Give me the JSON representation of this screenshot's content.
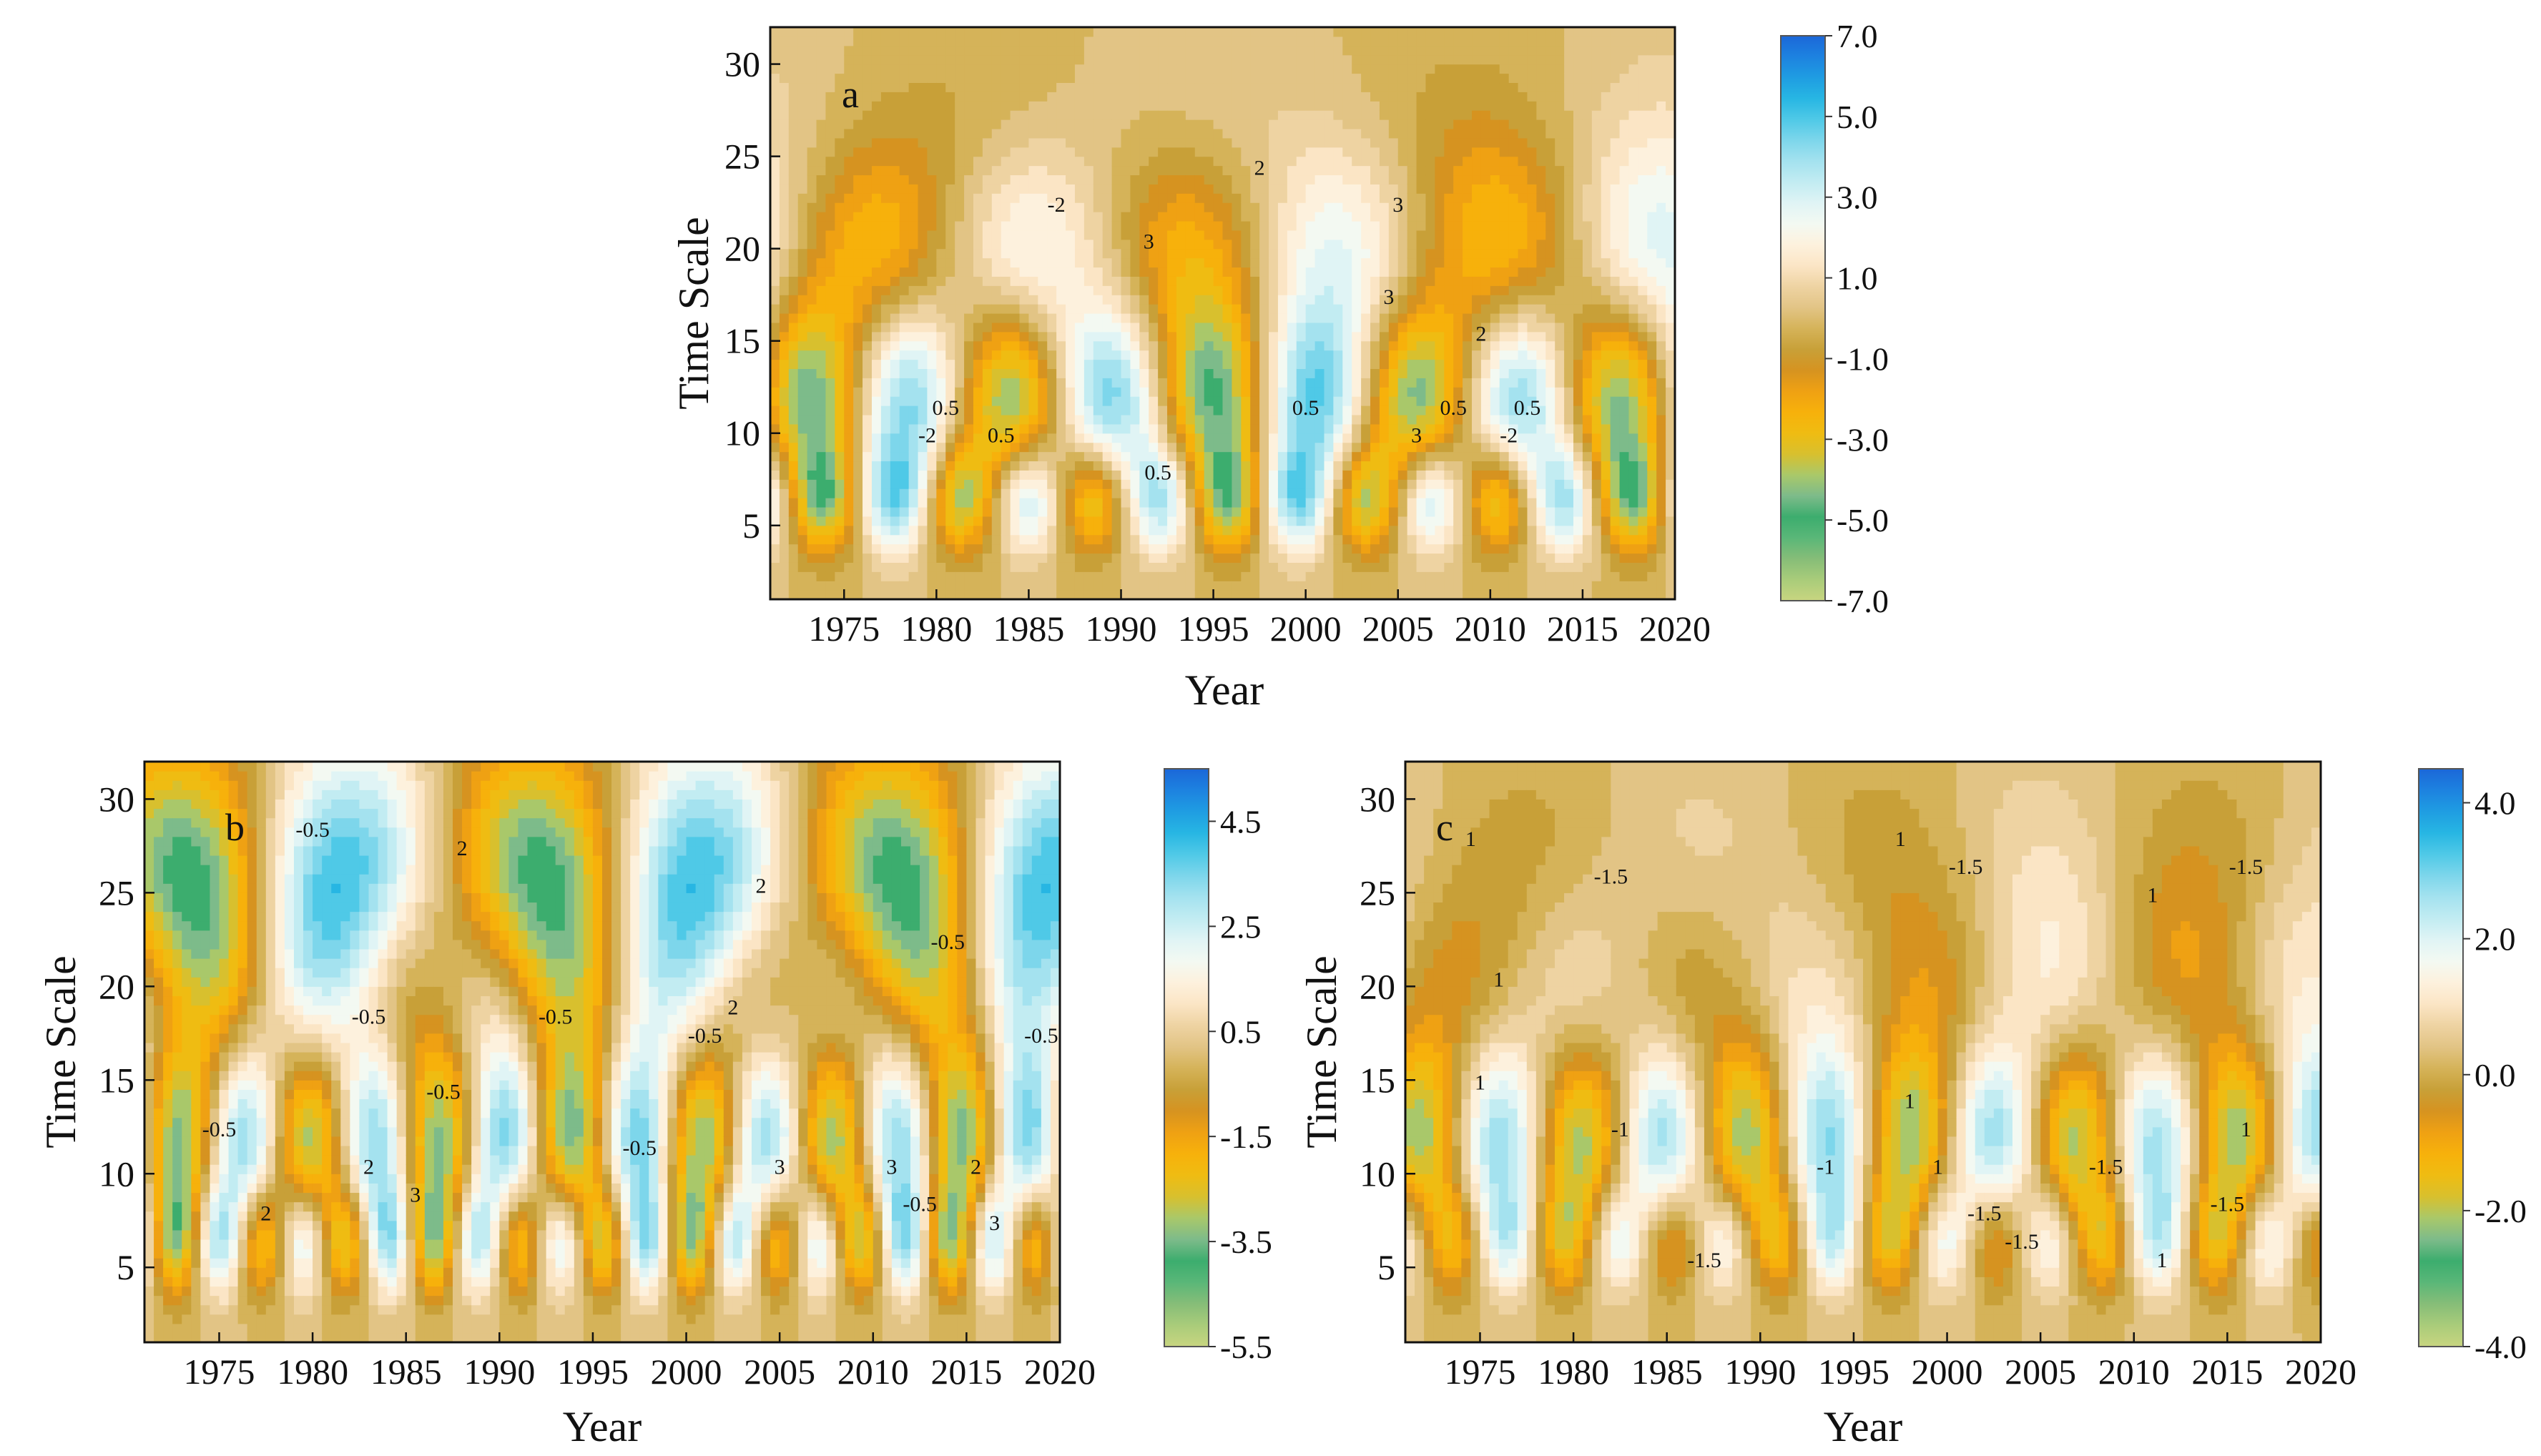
{
  "chart_data": [
    {
      "type": "heatmap",
      "panel_label": "a",
      "title": "",
      "xlabel": "Year",
      "ylabel": "Time Scale",
      "xlim": [
        1971,
        2020
      ],
      "ylim": [
        1,
        32
      ],
      "x_ticks": [
        1975,
        1980,
        1985,
        1990,
        1995,
        2000,
        2005,
        2010,
        2015,
        2020
      ],
      "y_ticks": [
        5,
        10,
        15,
        20,
        25,
        30
      ],
      "colorbar": {
        "min": -7.0,
        "max": 7.0,
        "labels": [
          "7.0",
          "5.0",
          "3.0",
          "1.0",
          "-1.0",
          "-3.0",
          "-5.0",
          "-7.0"
        ],
        "label_values": [
          7,
          5,
          3,
          1,
          -1,
          -3,
          -5,
          -7
        ]
      },
      "contour_labels": [
        {
          "text": "-2",
          "x": 1986.5,
          "y": 22
        },
        {
          "text": "3",
          "x": 1991.5,
          "y": 20
        },
        {
          "text": "2",
          "x": 1997.5,
          "y": 24
        },
        {
          "text": "3",
          "x": 2005,
          "y": 22
        },
        {
          "text": "3",
          "x": 2004.5,
          "y": 17
        },
        {
          "text": "2",
          "x": 2009.5,
          "y": 15
        },
        {
          "text": "0.5",
          "x": 1980.5,
          "y": 11
        },
        {
          "text": "-2",
          "x": 1979.5,
          "y": 9.5
        },
        {
          "text": "0.5",
          "x": 1983.5,
          "y": 9.5
        },
        {
          "text": "0.5",
          "x": 2000,
          "y": 11
        },
        {
          "text": "0.5",
          "x": 2008,
          "y": 11
        },
        {
          "text": "0.5",
          "x": 2012,
          "y": 11
        },
        {
          "text": "-2",
          "x": 2011,
          "y": 9.5
        },
        {
          "text": "3",
          "x": 2006,
          "y": 9.5
        },
        {
          "text": "0.5",
          "x": 1992,
          "y": 7.5
        }
      ],
      "pattern": {
        "a0": 0.3,
        "p0": 25,
        "ph0": 0.3,
        "a1": 1.2,
        "p1": 17,
        "ph1": 1.1,
        "a2": 2.1,
        "p2": 11,
        "ph2": 2.0,
        "a3": 1.8,
        "p3": 7.3,
        "ph3": 0.6
      }
    },
    {
      "type": "heatmap",
      "panel_label": "b",
      "title": "",
      "xlabel": "Year",
      "ylabel": "Time Scale",
      "xlim": [
        1971,
        2020
      ],
      "ylim": [
        1,
        32
      ],
      "x_ticks": [
        1975,
        1980,
        1985,
        1990,
        1995,
        2000,
        2005,
        2010,
        2015,
        2020
      ],
      "y_ticks": [
        5,
        10,
        15,
        20,
        25,
        30
      ],
      "colorbar": {
        "min": -5.5,
        "max": 5.5,
        "labels": [
          "4.5",
          "2.5",
          "0.5",
          "-1.5",
          "-3.5",
          "-5.5"
        ],
        "label_values": [
          4.5,
          2.5,
          0.5,
          -1.5,
          -3.5,
          -5.5
        ]
      },
      "contour_labels": [
        {
          "text": "-0.5",
          "x": 1980,
          "y": 28
        },
        {
          "text": "2",
          "x": 1988,
          "y": 27
        },
        {
          "text": "2",
          "x": 2004,
          "y": 25
        },
        {
          "text": "-0.5",
          "x": 2014,
          "y": 22
        },
        {
          "text": "-0.5",
          "x": 1983,
          "y": 18
        },
        {
          "text": "-0.5",
          "x": 1993,
          "y": 18
        },
        {
          "text": "-0.5",
          "x": 2001,
          "y": 17
        },
        {
          "text": "2",
          "x": 2002.5,
          "y": 18.5
        },
        {
          "text": "-0.5",
          "x": 2019,
          "y": 17
        },
        {
          "text": "-0.5",
          "x": 1975,
          "y": 12
        },
        {
          "text": "-0.5",
          "x": 1987,
          "y": 14
        },
        {
          "text": "2",
          "x": 1983,
          "y": 10
        },
        {
          "text": "3",
          "x": 1985.5,
          "y": 8.5
        },
        {
          "text": "2",
          "x": 2015.5,
          "y": 10
        },
        {
          "text": "3",
          "x": 2005,
          "y": 10
        },
        {
          "text": "3",
          "x": 2011,
          "y": 10
        },
        {
          "text": "-0.5",
          "x": 1997.5,
          "y": 11
        },
        {
          "text": "-0.5",
          "x": 2012.5,
          "y": 8
        },
        {
          "text": "2",
          "x": 1977.5,
          "y": 7.5
        },
        {
          "text": "3",
          "x": 2016.5,
          "y": 7
        }
      ],
      "pattern": {
        "a0": 2.4,
        "p0": 19,
        "ph0": 2.6,
        "a1": 0.8,
        "p1": 9.5,
        "ph1": 0.4,
        "a2": 2.0,
        "p2": 7.0,
        "ph2": 1.5,
        "a3": 1.6,
        "p3": 4.6,
        "ph3": 0.9
      }
    },
    {
      "type": "heatmap",
      "panel_label": "c",
      "title": "",
      "xlabel": "Year",
      "ylabel": "Time Scale",
      "xlim": [
        1971,
        2020
      ],
      "ylim": [
        1,
        32
      ],
      "x_ticks": [
        1975,
        1980,
        1985,
        1990,
        1995,
        2000,
        2005,
        2010,
        2015,
        2020
      ],
      "y_ticks": [
        5,
        10,
        15,
        20,
        25,
        30
      ],
      "colorbar": {
        "min": -4.0,
        "max": 4.5,
        "labels": [
          "4.0",
          "2.0",
          "0.0",
          "-2.0",
          "-4.0"
        ],
        "label_values": [
          4,
          2,
          0,
          -2,
          -4
        ]
      },
      "contour_labels": [
        {
          "text": "1",
          "x": 1974.5,
          "y": 27.5
        },
        {
          "text": "-1.5",
          "x": 1982,
          "y": 25.5
        },
        {
          "text": "1",
          "x": 1997.5,
          "y": 27.5
        },
        {
          "text": "-1.5",
          "x": 2001,
          "y": 26
        },
        {
          "text": "1",
          "x": 2011,
          "y": 24.5
        },
        {
          "text": "-1.5",
          "x": 2016,
          "y": 26
        },
        {
          "text": "1",
          "x": 1976,
          "y": 20
        },
        {
          "text": "1",
          "x": 1975,
          "y": 14.5
        },
        {
          "text": "-1",
          "x": 1982.5,
          "y": 12
        },
        {
          "text": "-1",
          "x": 1993.5,
          "y": 10
        },
        {
          "text": "1",
          "x": 1998,
          "y": 13.5
        },
        {
          "text": "1",
          "x": 1999.5,
          "y": 10
        },
        {
          "text": "-1.5",
          "x": 2002,
          "y": 7.5
        },
        {
          "text": "-1.5",
          "x": 2004,
          "y": 6
        },
        {
          "text": "-1.5",
          "x": 2008.5,
          "y": 10
        },
        {
          "text": "-1.5",
          "x": 2015,
          "y": 8
        },
        {
          "text": "1",
          "x": 2016,
          "y": 12
        },
        {
          "text": "1",
          "x": 2011.5,
          "y": 5
        },
        {
          "text": "-1.5",
          "x": 1987,
          "y": 5
        }
      ],
      "pattern": {
        "a0": 0.4,
        "p0": 18,
        "ph0": 0.8,
        "a1": 0.6,
        "p1": 13,
        "ph1": 2.0,
        "a2": 1.9,
        "p2": 8.8,
        "ph2": 2.7,
        "a3": 1.2,
        "p3": 5.8,
        "ph3": 0.3
      }
    }
  ],
  "colors": {
    "ramp": [
      "#c8d580",
      "#a9cc7a",
      "#86bd78",
      "#5ab778",
      "#3cad6e",
      "#7dbb8a",
      "#a9c86a",
      "#d8c02e",
      "#efbc12",
      "#f7b10b",
      "#efa113",
      "#d69320",
      "#c8a038",
      "#d5b359",
      "#e2c485",
      "#eed3a2",
      "#fbe5c5",
      "#fdf1dd",
      "#f3f9f2",
      "#e0f4f5",
      "#c2ecf2",
      "#a4e2ef",
      "#7dd6eb",
      "#4fc9e7",
      "#27b6e3",
      "#1f9de2",
      "#1d82e0",
      "#1b67d8"
    ],
    "axis": "#111111"
  }
}
